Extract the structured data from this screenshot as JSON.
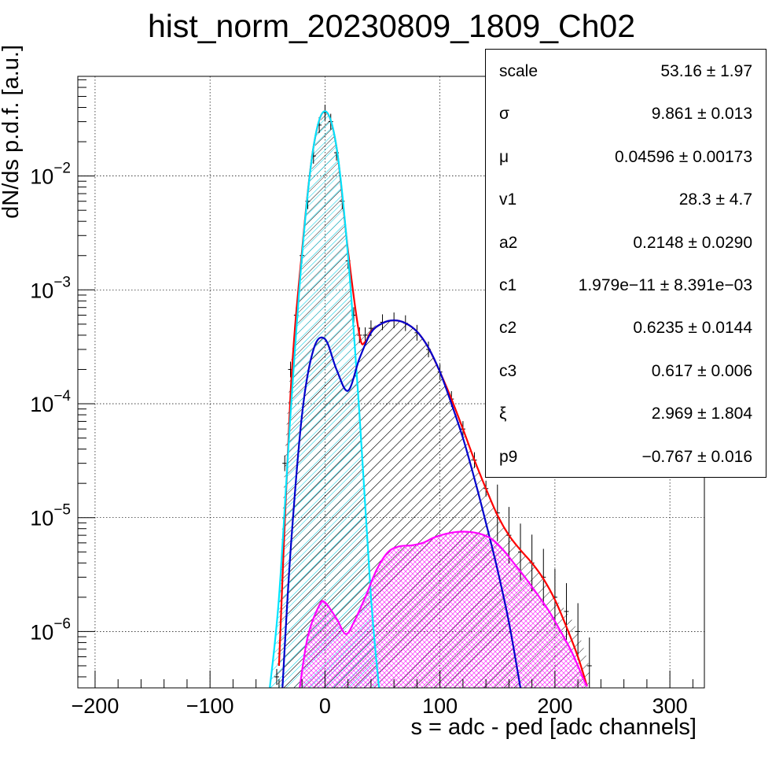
{
  "chart_data": {
    "type": "histogram",
    "title": "hist_norm_20230809_1809_Ch02",
    "xlabel": "s = adc - ped [adc channels]",
    "ylabel": "dN/ds p.d.f. [a.u.]",
    "xlim": [
      -215,
      330
    ],
    "ylim": [
      3.2e-07,
      0.075
    ],
    "yscale": "log",
    "grid": true,
    "x_ticks": [
      -200,
      -100,
      0,
      100,
      200,
      300
    ],
    "x_tick_labels": [
      "−200",
      "−100",
      "0",
      "100",
      "200",
      "300"
    ],
    "y_ticks": [
      {
        "value": 1e-06,
        "mantissa": "10",
        "exp": "−6"
      },
      {
        "value": 1e-05,
        "mantissa": "10",
        "exp": "−5"
      },
      {
        "value": 0.0001,
        "mantissa": "10",
        "exp": "−4"
      },
      {
        "value": 0.001,
        "mantissa": "10",
        "exp": "−3"
      },
      {
        "value": 0.01,
        "mantissa": "10",
        "exp": "−2"
      }
    ],
    "series": [
      {
        "color": "#000000",
        "style": "error-bars-with-hatch",
        "x": [
          -42,
          -35,
          -30,
          -25,
          -20,
          -15,
          -10,
          -5,
          0,
          5,
          10,
          15,
          20,
          25,
          30,
          35,
          40,
          50,
          60,
          70,
          80,
          90,
          100,
          110,
          120,
          130,
          140,
          150,
          160,
          170,
          180,
          190,
          200,
          210,
          220,
          230
        ],
        "y": [
          4e-07,
          3e-05,
          0.0002,
          0.0006,
          0.002,
          0.006,
          0.015,
          0.028,
          0.036,
          0.03,
          0.016,
          0.006,
          0.0018,
          0.0006,
          0.0004,
          0.0004,
          0.00046,
          0.00052,
          0.00054,
          0.00051,
          0.00042,
          0.0003,
          0.00019,
          0.00011,
          6e-05,
          3.2e-05,
          1.8e-05,
          1.1e-05,
          7e-06,
          5e-06,
          4e-06,
          3e-06,
          2e-06,
          1.5e-06,
          1e-06,
          5e-07
        ]
      },
      {
        "color": "#ff0000",
        "style": "line",
        "x": [
          -40,
          -30,
          -20,
          -10,
          0,
          10,
          20,
          30,
          35,
          40,
          50,
          60,
          70,
          80,
          90,
          100,
          110,
          120,
          130,
          140,
          150,
          160,
          170,
          180,
          190,
          200,
          210,
          220,
          228
        ],
        "y": [
          5e-07,
          0.00012,
          0.0022,
          0.018,
          0.037,
          0.018,
          0.0022,
          0.0004,
          0.00035,
          0.00043,
          0.00051,
          0.00054,
          0.00051,
          0.00043,
          0.00031,
          0.00019,
          0.00011,
          6e-05,
          3.2e-05,
          1.8e-05,
          1.05e-05,
          7e-06,
          5.2e-06,
          4e-06,
          2.9e-06,
          1.9e-06,
          1.1e-06,
          6e-07,
          3.3e-07
        ]
      },
      {
        "color": "#00e5ff",
        "style": "line-hatched",
        "x": [
          -48,
          -40,
          -30,
          -20,
          -10,
          0,
          10,
          20,
          30,
          40,
          47
        ],
        "y": [
          3.2e-07,
          2e-06,
          8e-05,
          0.002,
          0.018,
          0.037,
          0.018,
          0.002,
          8e-05,
          2e-06,
          3.2e-07
        ]
      },
      {
        "color": "#0000cc",
        "style": "line-hatched",
        "x": [
          -37,
          -30,
          -20,
          -10,
          0,
          10,
          20,
          30,
          40,
          50,
          60,
          70,
          80,
          90,
          100,
          110,
          120,
          130,
          140,
          150,
          160,
          170
        ],
        "y": [
          3.2e-07,
          5e-06,
          8e-05,
          0.0003,
          0.00037,
          0.0002,
          0.00013,
          0.00025,
          0.00042,
          0.00051,
          0.00054,
          0.00051,
          0.00043,
          0.00031,
          0.00019,
          0.0001,
          5e-05,
          2.2e-05,
          9e-06,
          3.5e-06,
          1.2e-06,
          3.2e-07
        ]
      },
      {
        "color": "#ff00ff",
        "style": "line-crosshatched",
        "x": [
          -22,
          -15,
          -5,
          0,
          10,
          18,
          25,
          35,
          45,
          55,
          65,
          75,
          85,
          95,
          105,
          115,
          125,
          135,
          145,
          155,
          165,
          175,
          185,
          195,
          205,
          215,
          225,
          228
        ],
        "y": [
          3.2e-07,
          9e-07,
          1.7e-06,
          1.8e-06,
          1.3e-06,
          9.5e-07,
          1.2e-06,
          2e-06,
          3.5e-06,
          5e-06,
          5.6e-06,
          5.7e-06,
          6e-06,
          6.7e-06,
          7.2e-06,
          7.5e-06,
          7.5e-06,
          7.2e-06,
          6.5e-06,
          5.2e-06,
          3.9e-06,
          2.9e-06,
          2.1e-06,
          1.5e-06,
          1e-06,
          6.5e-07,
          3.8e-07,
          3.3e-07
        ]
      }
    ]
  },
  "stats": [
    {
      "name": "scale",
      "value": "53.16 ± 1.97"
    },
    {
      "name": "σ",
      "value": "9.861 ± 0.013"
    },
    {
      "name": "μ",
      "value": "0.04596 ± 0.00173"
    },
    {
      "name": "v1",
      "value": "28.3 ± 4.7"
    },
    {
      "name": "a2",
      "value": "0.2148 ± 0.0290"
    },
    {
      "name": "c1",
      "value": "1.979e−11 ± 8.391e−03"
    },
    {
      "name": "c2",
      "value": "0.6235 ± 0.0144"
    },
    {
      "name": "c3",
      "value": "0.617 ± 0.006"
    },
    {
      "name": "ξ",
      "value": "2.969 ± 1.804"
    },
    {
      "name": "p9",
      "value": "−0.767 ± 0.016"
    }
  ]
}
